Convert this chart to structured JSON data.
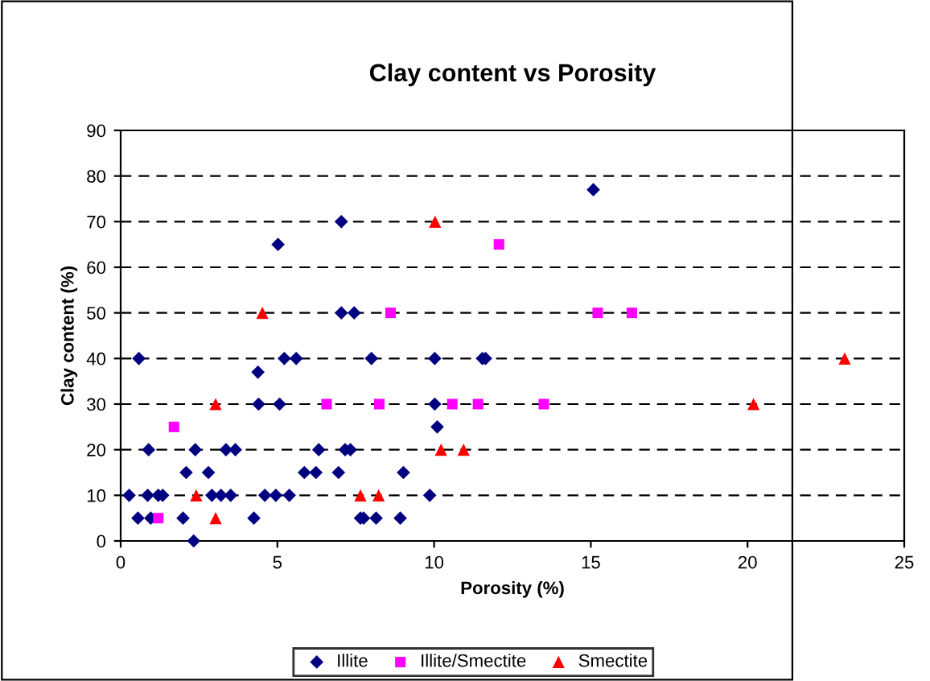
{
  "chart_data": {
    "type": "scatter",
    "title": "Clay content vs Porosity",
    "xlabel": "Porosity (%)",
    "ylabel": "Clay content (%)",
    "xlim": [
      0,
      25
    ],
    "xticks": [
      0,
      5,
      10,
      15,
      20,
      25
    ],
    "ylim": [
      0,
      90
    ],
    "yticks": [
      0,
      10,
      20,
      30,
      40,
      50,
      60,
      70,
      80,
      90
    ],
    "grid": "y",
    "legend": "bottom",
    "series": [
      {
        "name": "Illite",
        "color": "#000080",
        "marker": "diamond",
        "x": [
          0.27,
          0.55,
          0.58,
          0.86,
          0.89,
          0.96,
          1.2,
          1.34,
          1.99,
          2.09,
          2.33,
          2.38,
          2.8,
          2.91,
          3.2,
          3.51,
          3.36,
          3.66,
          4.25,
          4.38,
          4.4,
          4.6,
          4.95,
          5.02,
          5.07,
          5.22,
          5.6,
          5.38,
          5.86,
          6.23,
          6.32,
          6.95,
          7.04,
          7.04,
          7.45,
          7.16,
          7.33,
          7.65,
          7.75,
          8.15,
          8.0,
          8.92,
          9.02,
          9.86,
          10.02,
          10.02,
          10.1,
          11.54,
          11.64,
          15.08
        ],
        "values": [
          10,
          5,
          40,
          10,
          20,
          5,
          10,
          10,
          5,
          15,
          0,
          20,
          15,
          10,
          10,
          10,
          20,
          20,
          5,
          37,
          30,
          10,
          10,
          65,
          30,
          40,
          40,
          10,
          15,
          15,
          20,
          15,
          70,
          50,
          50,
          20,
          20,
          5,
          5,
          5,
          40,
          5,
          15,
          10,
          30,
          40,
          25,
          40,
          40,
          77
        ]
      },
      {
        "name": "Illite/Smectite",
        "color": "#ff00ff",
        "marker": "square",
        "x": [
          1.2,
          1.7,
          6.57,
          8.25,
          8.61,
          10.58,
          11.4,
          12.07,
          13.5,
          15.22,
          16.31
        ],
        "values": [
          5,
          25,
          30,
          30,
          50,
          30,
          30,
          65,
          30,
          50,
          50
        ]
      },
      {
        "name": "Smectite",
        "color": "#ff0000",
        "marker": "triangle",
        "x": [
          2.41,
          3.03,
          3.03,
          4.52,
          7.65,
          8.23,
          10.03,
          10.22,
          10.94,
          20.19,
          23.1
        ],
        "values": [
          10,
          5,
          30,
          50,
          10,
          10,
          70,
          20,
          20,
          30,
          40
        ]
      }
    ]
  }
}
